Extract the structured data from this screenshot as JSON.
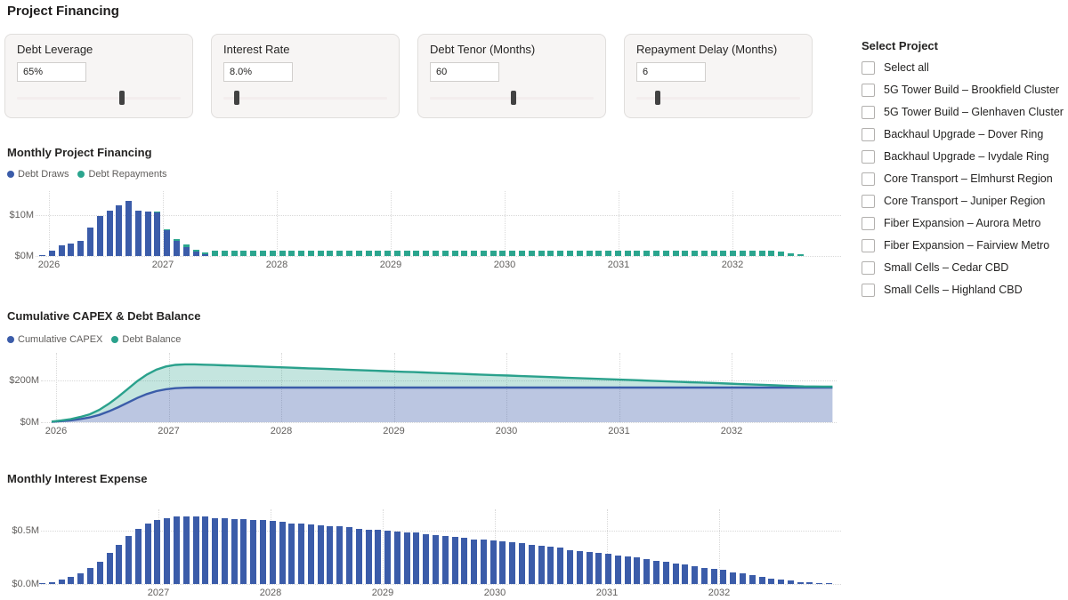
{
  "page": {
    "title": "Project Financing"
  },
  "parameters": [
    {
      "label": "Debt Leverage",
      "value": "65%",
      "slider_pos": 0.64
    },
    {
      "label": "Interest Rate",
      "value": "8.0%",
      "slider_pos": 0.08
    },
    {
      "label": "Debt Tenor (Months)",
      "value": "60",
      "slider_pos": 0.51
    },
    {
      "label": "Repayment Delay (Months)",
      "value": "6",
      "slider_pos": 0.13
    }
  ],
  "project_selector": {
    "title": "Select Project",
    "items": [
      {
        "label": "Select all",
        "checked": false
      },
      {
        "label": "5G Tower Build – Brookfield Cluster",
        "checked": false
      },
      {
        "label": "5G Tower Build – Glenhaven Cluster",
        "checked": false
      },
      {
        "label": "Backhaul Upgrade – Dover Ring",
        "checked": false
      },
      {
        "label": "Backhaul Upgrade – Ivydale Ring",
        "checked": false
      },
      {
        "label": "Core Transport – Elmhurst Region",
        "checked": false
      },
      {
        "label": "Core Transport – Juniper Region",
        "checked": false
      },
      {
        "label": "Fiber Expansion – Aurora Metro",
        "checked": false
      },
      {
        "label": "Fiber Expansion – Fairview Metro",
        "checked": false
      },
      {
        "label": "Small Cells – Cedar CBD",
        "checked": false
      },
      {
        "label": "Small Cells – Highland CBD",
        "checked": false
      }
    ]
  },
  "chart_data": [
    {
      "type": "bar",
      "title": "Monthly Project Financing",
      "x_start": "2026-01",
      "x_years": [
        "2026",
        "2027",
        "2028",
        "2029",
        "2030",
        "2031",
        "2032"
      ],
      "y_ticks": [
        {
          "label": "$0M",
          "value": 0
        },
        {
          "label": "$10M",
          "value": 10
        }
      ],
      "ylim": [
        0,
        14.5
      ],
      "unit": "USD millions per month",
      "legend_position": "top-left",
      "series": [
        {
          "name": "Debt Draws",
          "color": "#3b5ca9",
          "values": [
            0.3,
            1.4,
            2.6,
            3.0,
            3.6,
            7.0,
            9.7,
            11.2,
            12.3,
            13.4,
            11.0,
            10.9,
            10.6,
            6.3,
            3.8,
            2.2,
            1.1,
            0.4,
            0,
            0,
            0,
            0,
            0,
            0,
            0,
            0,
            0,
            0,
            0,
            0,
            0,
            0,
            0,
            0,
            0,
            0,
            0,
            0,
            0,
            0,
            0,
            0,
            0,
            0,
            0,
            0,
            0,
            0,
            0,
            0,
            0,
            0,
            0,
            0,
            0,
            0,
            0,
            0,
            0,
            0,
            0,
            0,
            0,
            0,
            0,
            0,
            0,
            0,
            0,
            0,
            0,
            0,
            0,
            0,
            0,
            0,
            0,
            0,
            0,
            0,
            0,
            0,
            0
          ]
        },
        {
          "name": "Debt Repayments",
          "color": "#2ba58e",
          "values": [
            0,
            0,
            0,
            0,
            0,
            0,
            0,
            0,
            0,
            0,
            0,
            0,
            0.2,
            0.25,
            0.45,
            0.55,
            0.5,
            0.5,
            1.3,
            1.3,
            1.3,
            1.3,
            1.3,
            1.3,
            1.3,
            1.3,
            1.3,
            1.3,
            1.3,
            1.3,
            1.3,
            1.3,
            1.3,
            1.3,
            1.3,
            1.3,
            1.3,
            1.3,
            1.3,
            1.3,
            1.3,
            1.3,
            1.3,
            1.3,
            1.3,
            1.3,
            1.3,
            1.3,
            1.3,
            1.3,
            1.3,
            1.3,
            1.3,
            1.3,
            1.3,
            1.3,
            1.3,
            1.3,
            1.3,
            1.3,
            1.3,
            1.3,
            1.3,
            1.3,
            1.3,
            1.3,
            1.3,
            1.3,
            1.3,
            1.3,
            1.3,
            1.3,
            1.3,
            1.3,
            1.3,
            1.3,
            1.3,
            1.0,
            0.75,
            0.5,
            0,
            0,
            0
          ]
        }
      ]
    },
    {
      "type": "area",
      "title": "Cumulative CAPEX & Debt Balance",
      "stacked": true,
      "x_start": "2026-01",
      "x_years": [
        "2026",
        "2027",
        "2028",
        "2029",
        "2030",
        "2031",
        "2032"
      ],
      "y_ticks": [
        {
          "label": "$0M",
          "value": 0
        },
        {
          "label": "$200M",
          "value": 200
        }
      ],
      "ylim": [
        0,
        320
      ],
      "unit": "USD millions",
      "legend_position": "top-left",
      "series": [
        {
          "name": "Cumulative CAPEX",
          "color": "#3b5ca9",
          "fill": "rgba(59,92,169,0.35)",
          "values": [
            2,
            5,
            9,
            15,
            23,
            35,
            52,
            72,
            94,
            116,
            135,
            149,
            158,
            163,
            165,
            166,
            166,
            166,
            166,
            166,
            166,
            166,
            166,
            166,
            166,
            166,
            166,
            166,
            166,
            166,
            166,
            166,
            166,
            166,
            166,
            166,
            166,
            166,
            166,
            166,
            166,
            166,
            166,
            166,
            166,
            166,
            166,
            166,
            166,
            166,
            166,
            166,
            166,
            166,
            166,
            166,
            166,
            166,
            166,
            166,
            166,
            166,
            166,
            166,
            166,
            166,
            166,
            166,
            166,
            166,
            166,
            166,
            166,
            166,
            166,
            166,
            166,
            166,
            166,
            166,
            166,
            166,
            166
          ]
        },
        {
          "name": "Debt Balance",
          "color": "#2aa18c",
          "fill": "rgba(42,161,140,0.28)",
          "values": [
            1,
            3,
            6,
            10,
            15,
            24,
            36,
            50,
            65,
            81,
            93,
            103,
            109,
            111.5,
            112,
            111,
            109.5,
            108,
            106.5,
            105,
            103.5,
            102,
            100.3,
            98.7,
            97.0,
            95.3,
            93.7,
            92.0,
            90.4,
            88.7,
            87.0,
            85.4,
            83.7,
            82.1,
            80.4,
            78.7,
            77.1,
            75.4,
            73.8,
            72.1,
            70.4,
            68.8,
            67.1,
            65.5,
            63.8,
            62.1,
            60.5,
            58.8,
            57.2,
            55.5,
            53.8,
            52.2,
            50.5,
            48.9,
            47.2,
            45.5,
            43.9,
            42.2,
            40.6,
            38.9,
            37.2,
            35.6,
            33.9,
            32.3,
            30.6,
            28.9,
            27.3,
            25.6,
            24.0,
            22.3,
            20.6,
            19.0,
            17.3,
            15.7,
            14.0,
            12.3,
            10.7,
            9.0,
            7.4,
            5.7,
            5.0,
            4.6,
            4.2
          ]
        }
      ]
    },
    {
      "type": "bar",
      "title": "Monthly Interest Expense",
      "x_start": "2026-01",
      "x_years": [
        "2027",
        "2028",
        "2029",
        "2030",
        "2031",
        "2032"
      ],
      "y_ticks": [
        {
          "label": "$0.0M",
          "value": 0
        },
        {
          "label": "$0.5M",
          "value": 0.5
        }
      ],
      "ylim": [
        0,
        0.7
      ],
      "unit": "USD millions per month",
      "legend_position": "none",
      "series": [
        {
          "name": "Interest Expense",
          "color": "#3b5ca9",
          "values": [
            0.01,
            0.02,
            0.04,
            0.07,
            0.1,
            0.15,
            0.21,
            0.29,
            0.37,
            0.45,
            0.52,
            0.57,
            0.6,
            0.62,
            0.63,
            0.63,
            0.63,
            0.63,
            0.62,
            0.62,
            0.61,
            0.61,
            0.6,
            0.6,
            0.59,
            0.58,
            0.57,
            0.57,
            0.56,
            0.55,
            0.54,
            0.54,
            0.53,
            0.52,
            0.51,
            0.51,
            0.5,
            0.49,
            0.48,
            0.48,
            0.47,
            0.46,
            0.45,
            0.44,
            0.43,
            0.42,
            0.42,
            0.41,
            0.4,
            0.39,
            0.38,
            0.37,
            0.36,
            0.35,
            0.34,
            0.32,
            0.31,
            0.3,
            0.29,
            0.28,
            0.27,
            0.26,
            0.25,
            0.23,
            0.22,
            0.21,
            0.19,
            0.18,
            0.17,
            0.15,
            0.14,
            0.13,
            0.11,
            0.1,
            0.08,
            0.07,
            0.05,
            0.04,
            0.03,
            0.02,
            0.015,
            0.01,
            0.008
          ]
        }
      ]
    }
  ]
}
